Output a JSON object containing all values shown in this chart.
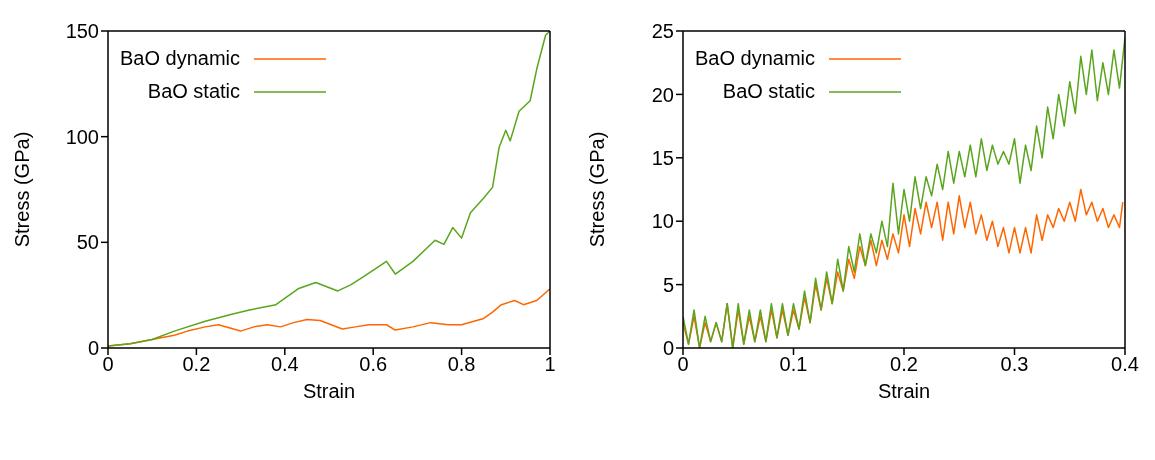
{
  "chart_data": [
    {
      "type": "line",
      "xlabel": "Strain",
      "ylabel": "Stress (GPa)",
      "xlim": [
        0,
        1
      ],
      "ylim": [
        0,
        150
      ],
      "xticks": [
        0,
        0.2,
        0.4,
        0.6,
        0.8,
        1
      ],
      "yticks": [
        0,
        50,
        100,
        150
      ],
      "legend": "top left",
      "series": [
        {
          "name": "BaO dynamic",
          "color": "#ff6600",
          "x": [
            0,
            0.05,
            0.1,
            0.15,
            0.18,
            0.22,
            0.25,
            0.3,
            0.33,
            0.36,
            0.39,
            0.42,
            0.45,
            0.48,
            0.53,
            0.56,
            0.59,
            0.63,
            0.65,
            0.69,
            0.73,
            0.77,
            0.8,
            0.85,
            0.87,
            0.89,
            0.92,
            0.94,
            0.97,
            1
          ],
          "values": [
            1,
            2,
            4,
            6,
            8,
            10,
            11,
            8,
            10,
            11,
            10,
            12,
            13.5,
            13,
            9,
            10,
            11,
            11,
            8.5,
            10,
            12,
            11,
            11,
            14,
            17,
            20.5,
            22.5,
            20.5,
            22.5,
            28
          ]
        },
        {
          "name": "BaO static",
          "color": "#5aa51e",
          "x": [
            0,
            0.05,
            0.1,
            0.15,
            0.22,
            0.28,
            0.32,
            0.38,
            0.43,
            0.47,
            0.52,
            0.55,
            0.58,
            0.63,
            0.65,
            0.69,
            0.74,
            0.76,
            0.78,
            0.8,
            0.82,
            0.85,
            0.87,
            0.885,
            0.9,
            0.91,
            0.93,
            0.955,
            0.97,
            0.99,
            1
          ],
          "values": [
            1,
            2,
            4,
            8,
            12.7,
            16,
            18,
            20.5,
            28,
            31,
            27,
            30,
            34,
            41,
            35,
            41,
            51,
            49,
            57,
            52,
            64,
            71,
            76,
            95,
            103,
            98,
            112,
            117,
            132,
            148,
            150
          ]
        }
      ]
    },
    {
      "type": "line",
      "xlabel": "Strain",
      "ylabel": "Stress (GPa)",
      "xlim": [
        0,
        0.4
      ],
      "ylim": [
        0,
        25
      ],
      "xticks": [
        0,
        0.1,
        0.2,
        0.3,
        0.4
      ],
      "yticks": [
        0,
        5,
        10,
        15,
        20,
        25
      ],
      "legend": "top left",
      "series": [
        {
          "name": "BaO dynamic",
          "color": "#ff6600",
          "x": [
            0,
            0.005,
            0.01,
            0.015,
            0.02,
            0.025,
            0.03,
            0.035,
            0.04,
            0.045,
            0.05,
            0.055,
            0.06,
            0.065,
            0.07,
            0.075,
            0.08,
            0.085,
            0.09,
            0.095,
            0.1,
            0.105,
            0.11,
            0.115,
            0.12,
            0.125,
            0.13,
            0.135,
            0.14,
            0.145,
            0.15,
            0.155,
            0.16,
            0.165,
            0.17,
            0.175,
            0.18,
            0.185,
            0.19,
            0.195,
            0.2,
            0.205,
            0.21,
            0.215,
            0.22,
            0.225,
            0.23,
            0.235,
            0.24,
            0.245,
            0.25,
            0.255,
            0.26,
            0.265,
            0.27,
            0.275,
            0.28,
            0.285,
            0.29,
            0.295,
            0.3,
            0.305,
            0.31,
            0.315,
            0.32,
            0.325,
            0.33,
            0.335,
            0.34,
            0.345,
            0.35,
            0.355,
            0.36,
            0.365,
            0.37,
            0.375,
            0.38,
            0.385,
            0.39,
            0.395,
            0.398
          ],
          "values": [
            2,
            0.3,
            2.5,
            0,
            2,
            0.5,
            2,
            0.5,
            3.5,
            0,
            3,
            0.3,
            2.5,
            0.5,
            2.5,
            0.5,
            3,
            0.8,
            3,
            1,
            3,
            1.5,
            4,
            2,
            5,
            3,
            5.5,
            3.5,
            6,
            4.5,
            7,
            5.5,
            8,
            6.5,
            8.5,
            6.5,
            8.5,
            7,
            9,
            7.5,
            10.5,
            8,
            11,
            9,
            11.5,
            9.5,
            11.5,
            8.5,
            11.5,
            9,
            12,
            9.5,
            11.5,
            9,
            10.5,
            8.5,
            10,
            8,
            9.5,
            7.5,
            9.5,
            7.5,
            9.5,
            7.5,
            10.5,
            8.5,
            10.5,
            9.5,
            11,
            10,
            11.5,
            10,
            12.5,
            10.5,
            11.5,
            10,
            11,
            9.5,
            10.5,
            9.5,
            11.5
          ]
        },
        {
          "name": "BaO static",
          "color": "#5aa51e",
          "x": [
            0,
            0.005,
            0.01,
            0.015,
            0.02,
            0.025,
            0.03,
            0.035,
            0.04,
            0.045,
            0.05,
            0.055,
            0.06,
            0.065,
            0.07,
            0.075,
            0.08,
            0.085,
            0.09,
            0.095,
            0.1,
            0.105,
            0.11,
            0.115,
            0.12,
            0.125,
            0.13,
            0.135,
            0.14,
            0.145,
            0.15,
            0.155,
            0.16,
            0.165,
            0.17,
            0.175,
            0.18,
            0.185,
            0.19,
            0.195,
            0.2,
            0.205,
            0.21,
            0.215,
            0.22,
            0.225,
            0.23,
            0.235,
            0.24,
            0.245,
            0.25,
            0.255,
            0.26,
            0.265,
            0.27,
            0.275,
            0.28,
            0.285,
            0.29,
            0.295,
            0.3,
            0.305,
            0.31,
            0.315,
            0.32,
            0.325,
            0.33,
            0.335,
            0.34,
            0.345,
            0.35,
            0.355,
            0.36,
            0.365,
            0.37,
            0.375,
            0.38,
            0.385,
            0.39,
            0.395,
            0.4
          ],
          "values": [
            2.5,
            0.3,
            3,
            0,
            2.5,
            0.5,
            2,
            0.5,
            3.5,
            0,
            3.5,
            0.3,
            3,
            0.5,
            3,
            0.5,
            3.5,
            0.8,
            3.5,
            1,
            3.5,
            1.5,
            4.5,
            2,
            5.5,
            3,
            6,
            3.5,
            7,
            4.5,
            8,
            6,
            9,
            6.5,
            9,
            7.5,
            10,
            8,
            13,
            9,
            12.5,
            10,
            13.5,
            11,
            13.5,
            12,
            14.5,
            12.5,
            15.5,
            13,
            15.5,
            13.5,
            16,
            13.5,
            16.5,
            14,
            16,
            14.5,
            15.5,
            14.5,
            16.5,
            13,
            16,
            14,
            17.5,
            15,
            19,
            16.5,
            20,
            17.5,
            21,
            18.5,
            23,
            20,
            23.5,
            19.5,
            22.5,
            20,
            23.5,
            20.5,
            24.5
          ]
        }
      ]
    }
  ]
}
